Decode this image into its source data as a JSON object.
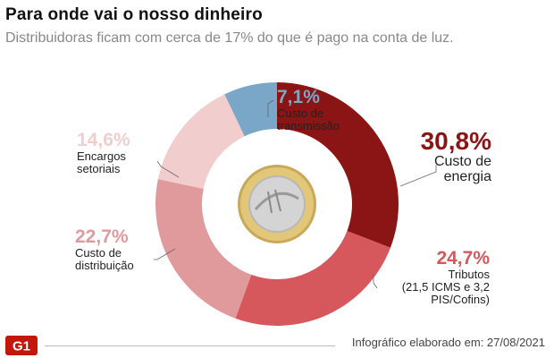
{
  "title": "Para onde vai o nosso dinheiro",
  "subtitle": "Distribuidoras ficam com cerca de 17% do que é pago na conta de luz.",
  "chart_data": {
    "type": "pie",
    "donut": true,
    "slices": [
      {
        "key": "energia",
        "pct_label": "30,8%",
        "label_lines": [
          "Custo de",
          "energia"
        ],
        "value": 30.8,
        "color": "#8b1414"
      },
      {
        "key": "tributos",
        "pct_label": "24,7%",
        "label_lines": [
          "Tributos",
          "(21,5 ICMS e 3,2",
          "PIS/Cofins)"
        ],
        "value": 24.7,
        "color": "#d6585c"
      },
      {
        "key": "distribuicao",
        "pct_label": "22,7%",
        "label_lines": [
          "Custo de",
          "distribuição"
        ],
        "value": 22.7,
        "color": "#e09a9c"
      },
      {
        "key": "encargos",
        "pct_label": "14,6%",
        "label_lines": [
          "Encargos",
          "setoriais"
        ],
        "value": 14.6,
        "color": "#f1cdcd"
      },
      {
        "key": "transmissao",
        "pct_label": "7,1%",
        "label_lines": [
          "Custo de",
          "transmissão"
        ],
        "value": 7.1,
        "color": "#7aa6c8"
      }
    ]
  },
  "center_image": "coin-one-real",
  "footer": {
    "logo": "G1",
    "credit": "Infográfico elaborado em: 27/08/2021"
  }
}
